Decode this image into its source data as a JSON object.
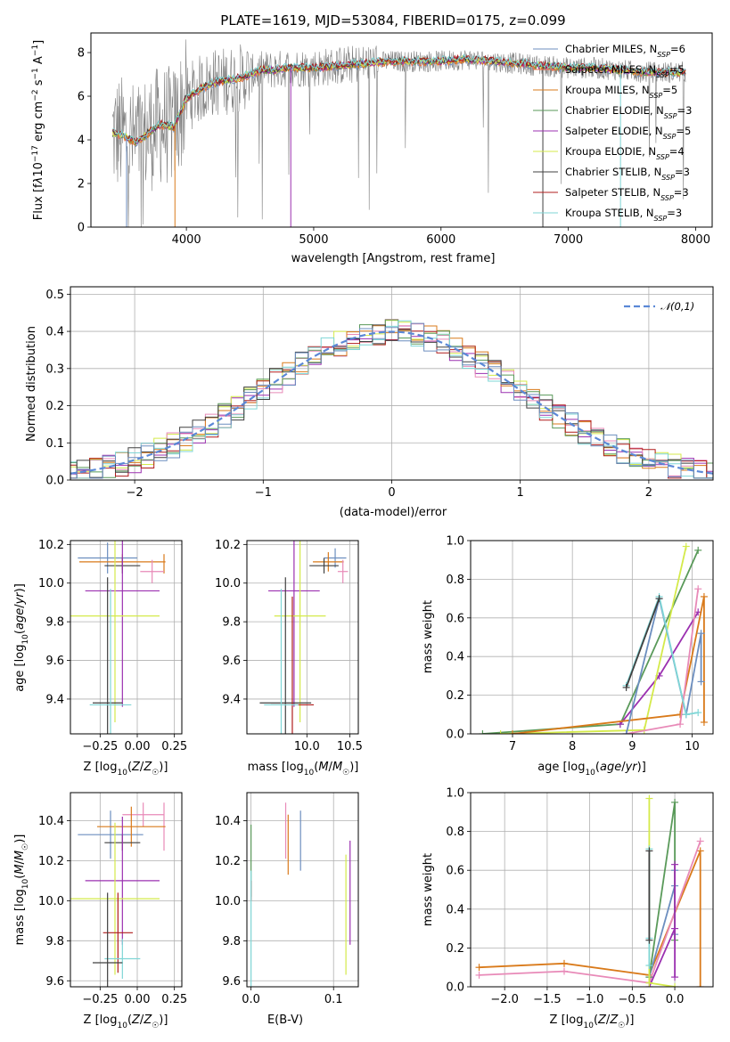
{
  "chart_data": [
    {
      "id": "spectrum",
      "type": "line",
      "title": "PLATE=1619, MJD=53084, FIBERID=0175, z=0.099",
      "xlabel": "wavelength [Angstrom, rest frame]",
      "ylabel": "Flux [f_λ 10^-17 erg cm^-2 s^-1 A^-1]",
      "xlim": [
        3250,
        8130
      ],
      "ylim": [
        0,
        8.9
      ],
      "xticks": [
        4000,
        5000,
        6000,
        7000,
        8000
      ],
      "yticks": [
        0,
        2,
        4,
        6,
        8
      ],
      "grid": false,
      "legend_position": "top-right",
      "data_color": "#808080",
      "continuum": {
        "x": [
          3420,
          3500,
          3600,
          3700,
          3800,
          3900,
          4000,
          4100,
          4200,
          4300,
          4400,
          4500,
          4600,
          4700,
          4800,
          5000,
          5200,
          5400,
          5600,
          5800,
          6000,
          6200,
          6400,
          6600,
          6800,
          7000,
          7200,
          7400,
          7600,
          7800,
          7920
        ],
        "y": [
          4.3,
          4.2,
          3.9,
          4.3,
          4.7,
          4.6,
          5.9,
          6.3,
          6.6,
          6.7,
          6.8,
          7.0,
          7.2,
          7.2,
          7.3,
          7.3,
          7.4,
          7.5,
          7.6,
          7.6,
          7.6,
          7.7,
          7.6,
          7.5,
          7.4,
          7.3,
          7.3,
          7.2,
          7.1,
          7.1,
          7.1
        ]
      },
      "series": [
        {
          "name": "Chabrier MILES, N_SSP=6",
          "label_base": "Chabrier MILES, N",
          "label_sub": "SSP",
          "label_val": "=6",
          "color": "#6c8ebf"
        },
        {
          "name": "Salpeter MILES, N_SSP=5",
          "label_base": "Salpeter MILES, N",
          "label_sub": "SSP",
          "label_val": "=5",
          "color": "#e8754f"
        },
        {
          "name": "Kroupa MILES, N_SSP=5",
          "label_base": "Kroupa MILES, N",
          "label_sub": "SSP",
          "label_val": "=5",
          "color": "#d97a1a"
        },
        {
          "name": "Chabrier ELODIE, N_SSP=3",
          "label_base": "Chabrier ELODIE, N",
          "label_sub": "SSP",
          "label_val": "=3",
          "color": "#5a9a5a"
        },
        {
          "name": "Salpeter ELODIE, N_SSP=5",
          "label_base": "Salpeter ELODIE, N",
          "label_sub": "SSP",
          "label_val": "=5",
          "color": "#9b30b0"
        },
        {
          "name": "Kroupa ELODIE, N_SSP=4",
          "label_base": "Kroupa ELODIE, N",
          "label_sub": "SSP",
          "label_val": "=4",
          "color": "#d4ea4a"
        },
        {
          "name": "Chabrier STELIB, N_SSP=3",
          "label_base": "Chabrier STELIB, N",
          "label_sub": "SSP",
          "label_val": "=3",
          "color": "#404040"
        },
        {
          "name": "Salpeter STELIB, N_SSP=3",
          "label_base": "Salpeter STELIB, N",
          "label_sub": "SSP",
          "label_val": "=3",
          "color": "#b01c1c"
        },
        {
          "name": "Kroupa STELIB, N_SSP=3",
          "label_base": "Kroupa STELIB, N",
          "label_sub": "SSP",
          "label_val": "=3",
          "color": "#7fd6d6"
        }
      ]
    },
    {
      "id": "residuals",
      "type": "step",
      "xlabel": "(data-model)/error",
      "ylabel": "Normed distribution",
      "xlim": [
        -2.5,
        2.5
      ],
      "ylim": [
        0,
        0.52
      ],
      "xticks": [
        -2,
        -1,
        0,
        1,
        2
      ],
      "yticks": [
        0.0,
        0.1,
        0.2,
        0.3,
        0.4,
        0.5
      ],
      "grid": true,
      "legend": "𝒩(0,1)",
      "legend_position": "top-right",
      "gaussian_color": "#5b88d6",
      "bin_width": 0.1,
      "step_colors": [
        "#9b30b0",
        "#d4ea4a",
        "#e88ab8",
        "#d97a1a",
        "#5a9a5a",
        "#b01c1c",
        "#7fd6d6",
        "#404040",
        "#6c8ebf"
      ]
    },
    {
      "id": "age_vs_Z",
      "type": "errorbar",
      "xlabel": "Z [log10(Z/Z☉)]",
      "ylabel": "age  [log10(age/yr)]",
      "xlim": [
        -0.45,
        0.3
      ],
      "ylim": [
        9.22,
        10.22
      ],
      "xticks": [
        -0.25,
        0.0,
        0.25
      ],
      "xticklabels": [
        "−0.25",
        "0.00",
        "0.25"
      ],
      "yticks": [
        9.4,
        9.6,
        9.8,
        10.0,
        10.2
      ],
      "grid": true,
      "points": [
        {
          "x": -0.2,
          "y": 10.13,
          "xerr": 0.2,
          "yerr": 0.08,
          "color": "#6c8ebf"
        },
        {
          "x": 0.18,
          "y": 10.1,
          "xerr": 0.0,
          "yerr": 0.05,
          "color": "#d97a1a"
        },
        {
          "x": -0.1,
          "y": 10.11,
          "xerr": 0.29,
          "yerr": 0.04,
          "color": "#d97a1a"
        },
        {
          "x": -0.1,
          "y": 10.09,
          "xerr": 0.12,
          "yerr": 0.04,
          "color": "#404040"
        },
        {
          "x": 0.1,
          "y": 10.06,
          "xerr": 0.08,
          "yerr": 0.06,
          "color": "#e88ab8"
        },
        {
          "x": -0.1,
          "y": 9.96,
          "xerr": 0.25,
          "yerr": 0.6,
          "color": "#9b30b0"
        },
        {
          "x": -0.15,
          "y": 9.83,
          "xerr": 0.3,
          "yerr": 0.55,
          "color": "#d4ea4a"
        },
        {
          "x": -0.2,
          "y": 9.38,
          "xerr": 0.1,
          "yerr": 0.65,
          "color": "#404040"
        },
        {
          "x": -0.18,
          "y": 9.37,
          "xerr": 0.14,
          "yerr": 0.6,
          "color": "#7fd6d6"
        }
      ]
    },
    {
      "id": "age_vs_mass",
      "type": "errorbar",
      "xlabel": "mass [log10(M/M☉)]",
      "xlim": [
        9.3,
        10.6
      ],
      "ylim": [
        9.22,
        10.22
      ],
      "xticks": [
        10.0,
        10.5
      ],
      "xticklabels": [
        "10.0",
        "10.5"
      ],
      "yticks": [
        9.4,
        9.6,
        9.8,
        10.0,
        10.2
      ],
      "grid": true,
      "points": [
        {
          "x": 10.33,
          "y": 10.13,
          "xerr": 0.13,
          "yerr": 0.05,
          "color": "#6c8ebf"
        },
        {
          "x": 10.25,
          "y": 10.11,
          "xerr": 0.18,
          "yerr": 0.05,
          "color": "#d97a1a"
        },
        {
          "x": 10.2,
          "y": 10.09,
          "xerr": 0.17,
          "yerr": 0.04,
          "color": "#404040"
        },
        {
          "x": 10.42,
          "y": 10.06,
          "xerr": 0.06,
          "yerr": 0.06,
          "color": "#e88ab8"
        },
        {
          "x": 9.85,
          "y": 9.96,
          "xerr": 0.3,
          "yerr": 0.6,
          "color": "#9b30b0"
        },
        {
          "x": 9.92,
          "y": 9.83,
          "xerr": 0.3,
          "yerr": 0.55,
          "color": "#d4ea4a"
        },
        {
          "x": 9.75,
          "y": 9.38,
          "xerr": 0.3,
          "yerr": 0.65,
          "color": "#404040"
        },
        {
          "x": 9.83,
          "y": 9.37,
          "xerr": 0.25,
          "yerr": 0.56,
          "color": "#b01c1c"
        },
        {
          "x": 9.7,
          "y": 9.37,
          "xerr": 0.2,
          "yerr": 0.6,
          "color": "#7fd6d6"
        }
      ]
    },
    {
      "id": "weight_vs_age",
      "type": "line",
      "xlabel": "age  [log10(age/yr)]",
      "ylabel": "mass weight",
      "xlim": [
        6.3,
        10.35
      ],
      "ylim": [
        0,
        1.0
      ],
      "xticks": [
        7,
        8,
        9,
        10
      ],
      "yticks": [
        0.0,
        0.2,
        0.4,
        0.6,
        0.8,
        1.0
      ],
      "grid": true,
      "series": [
        {
          "color": "#5a9a5a",
          "x": [
            6.5,
            8.8,
            10.1
          ],
          "y": [
            0.0,
            0.05,
            0.95
          ]
        },
        {
          "color": "#9b30b0",
          "x": [
            8.8,
            9.45,
            10.1
          ],
          "y": [
            0.05,
            0.3,
            0.63
          ]
        },
        {
          "color": "#d4ea4a",
          "x": [
            6.8,
            9.2,
            9.9
          ],
          "y": [
            0.0,
            0.02,
            0.97
          ]
        },
        {
          "color": "#d97a1a",
          "x": [
            7.0,
            9.8,
            10.2,
            10.2
          ],
          "y": [
            0.0,
            0.1,
            0.71,
            0.06
          ]
        },
        {
          "color": "#e88ab8",
          "x": [
            8.9,
            9.8,
            10.1
          ],
          "y": [
            0.0,
            0.05,
            0.75
          ]
        },
        {
          "color": "#6c8ebf",
          "x": [
            8.9,
            9.45,
            9.9,
            10.15,
            10.15
          ],
          "y": [
            0.0,
            0.7,
            0.1,
            0.52,
            0.27
          ]
        },
        {
          "color": "#7fd6d6",
          "x": [
            8.9,
            9.45,
            9.9,
            10.1
          ],
          "y": [
            0.25,
            0.71,
            0.1,
            0.11
          ]
        },
        {
          "color": "#404040",
          "x": [
            8.9,
            9.45
          ],
          "y": [
            0.24,
            0.7
          ]
        }
      ]
    },
    {
      "id": "mass_vs_Z",
      "type": "errorbar",
      "xlabel": "Z [log10(Z/Z☉)]",
      "ylabel": "mass [log10(M/M☉)]",
      "xlim": [
        -0.45,
        0.3
      ],
      "ylim": [
        9.57,
        10.54
      ],
      "xticks": [
        -0.25,
        0.0,
        0.25
      ],
      "xticklabels": [
        "−0.25",
        "0.00",
        "0.25"
      ],
      "yticks": [
        9.6,
        9.8,
        10.0,
        10.2,
        10.4
      ],
      "grid": true,
      "points": [
        {
          "x": -0.18,
          "y": 10.33,
          "xerr": 0.22,
          "yerr": 0.12,
          "color": "#6c8ebf"
        },
        {
          "x": 0.04,
          "y": 10.43,
          "xerr": 0.14,
          "yerr": 0.06,
          "color": "#e88ab8"
        },
        {
          "x": 0.18,
          "y": 10.37,
          "xerr": 0.0,
          "yerr": 0.12,
          "color": "#e88ab8"
        },
        {
          "x": -0.04,
          "y": 10.37,
          "xerr": 0.23,
          "yerr": 0.1,
          "color": "#d97a1a"
        },
        {
          "x": -0.1,
          "y": 10.29,
          "xerr": 0.12,
          "yerr": 0.04,
          "color": "#404040"
        },
        {
          "x": -0.1,
          "y": 10.1,
          "xerr": 0.25,
          "yerr": 0.32,
          "color": "#9b30b0"
        },
        {
          "x": -0.15,
          "y": 10.01,
          "xerr": 0.3,
          "yerr": 0.38,
          "color": "#d4ea4a"
        },
        {
          "x": -0.13,
          "y": 9.84,
          "xerr": 0.1,
          "yerr": 0.2,
          "color": "#b01c1c"
        },
        {
          "x": -0.1,
          "y": 9.71,
          "xerr": 0.12,
          "yerr": 0.1,
          "color": "#7fd6d6"
        },
        {
          "x": -0.2,
          "y": 9.69,
          "xerr": 0.1,
          "yerr": 0.35,
          "color": "#404040"
        }
      ]
    },
    {
      "id": "mass_vs_ebv",
      "type": "errorbar",
      "xlabel": "E(B-V)",
      "xlim": [
        -0.005,
        0.13
      ],
      "ylim": [
        9.57,
        10.54
      ],
      "xticks": [
        0.0,
        0.1
      ],
      "xticklabels": [
        "0.0",
        "0.1"
      ],
      "yticks": [
        9.6,
        9.8,
        10.0,
        10.2,
        10.4
      ],
      "grid": true,
      "points": [
        {
          "x": 0.0,
          "y": 10.2,
          "xerr": 0.0,
          "yerr": 0.18,
          "color": "#5a9a5a"
        },
        {
          "x": 0.0,
          "y": 10.05,
          "xerr": 0.0,
          "yerr": 0.05,
          "color": "#b01c1c"
        },
        {
          "x": 0.0,
          "y": 9.85,
          "xerr": 0.0,
          "yerr": 0.3,
          "color": "#7fd6d6"
        },
        {
          "x": 0.042,
          "y": 10.35,
          "xerr": 0.0,
          "yerr": 0.14,
          "color": "#e88ab8"
        },
        {
          "x": 0.045,
          "y": 10.28,
          "xerr": 0.0,
          "yerr": 0.15,
          "color": "#d97a1a"
        },
        {
          "x": 0.06,
          "y": 10.3,
          "xerr": 0.0,
          "yerr": 0.15,
          "color": "#6c8ebf"
        },
        {
          "x": 0.12,
          "y": 10.04,
          "xerr": 0.0,
          "yerr": 0.26,
          "color": "#9b30b0"
        },
        {
          "x": 0.115,
          "y": 9.93,
          "xerr": 0.0,
          "yerr": 0.3,
          "color": "#d4ea4a"
        }
      ]
    },
    {
      "id": "weight_vs_Z",
      "type": "line",
      "xlabel": "Z [log10(Z/Z☉)]",
      "ylabel": "mass weight",
      "xlim": [
        -2.4,
        0.45
      ],
      "ylim": [
        0,
        1.0
      ],
      "xticks": [
        -2.0,
        -1.5,
        -1.0,
        -0.5,
        0.0
      ],
      "xticklabels": [
        "−2.0",
        "−1.5",
        "−1.0",
        "−0.5",
        "0.0"
      ],
      "yticks": [
        0.0,
        0.2,
        0.4,
        0.6,
        0.8,
        1.0
      ],
      "grid": true,
      "series": [
        {
          "color": "#d97a1a",
          "x": [
            -2.3,
            -1.3,
            -0.3,
            0.3,
            0.3
          ],
          "y": [
            0.1,
            0.12,
            0.06,
            0.7,
            0.0
          ]
        },
        {
          "color": "#e88ab8",
          "x": [
            -2.3,
            -1.3,
            -0.3,
            0.3
          ],
          "y": [
            0.06,
            0.08,
            0.02,
            0.75
          ]
        },
        {
          "color": "#6c8ebf",
          "x": [
            -0.3,
            0.0,
            0.0,
            0.0
          ],
          "y": [
            0.05,
            0.52,
            0.27,
            0.6
          ]
        },
        {
          "color": "#5a9a5a",
          "x": [
            -0.3,
            0.0,
            0.0
          ],
          "y": [
            0.05,
            0.95,
            0.24
          ]
        },
        {
          "color": "#9b30b0",
          "x": [
            -0.3,
            0.0,
            0.0,
            0.0
          ],
          "y": [
            0.0,
            0.3,
            0.63,
            0.05
          ]
        },
        {
          "color": "#d4ea4a",
          "x": [
            -0.3,
            -0.3,
            0.0
          ],
          "y": [
            0.97,
            0.02,
            0.0
          ]
        },
        {
          "color": "#7fd6d6",
          "x": [
            -0.3,
            -0.3,
            -0.3
          ],
          "y": [
            0.71,
            0.25,
            0.11
          ]
        },
        {
          "color": "#404040",
          "x": [
            -0.3,
            -0.3
          ],
          "y": [
            0.7,
            0.24
          ]
        }
      ]
    }
  ]
}
